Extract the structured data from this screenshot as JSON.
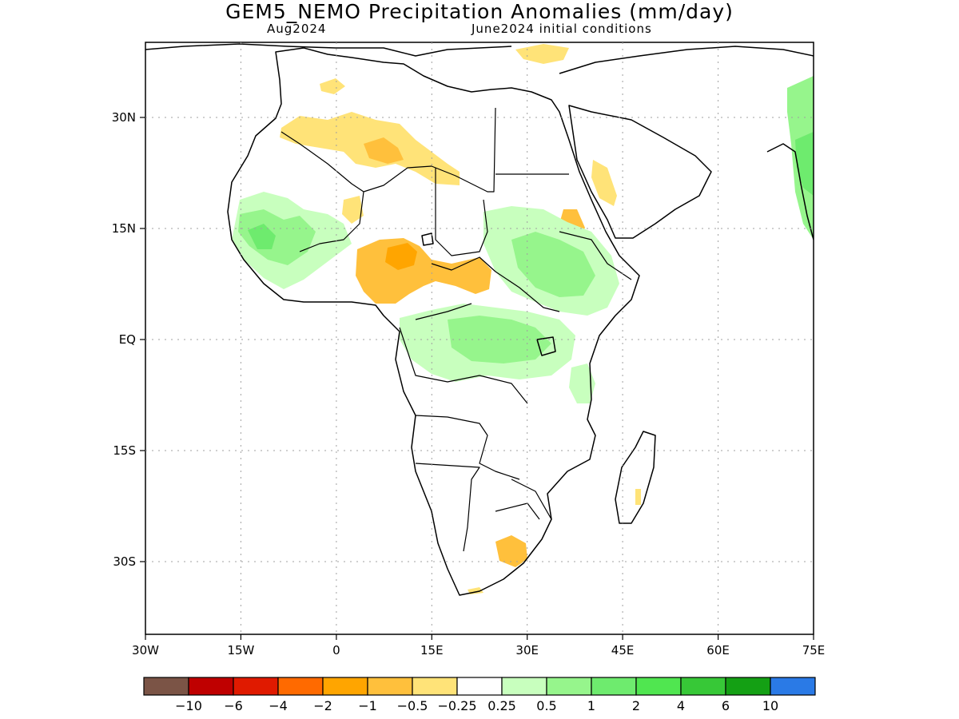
{
  "title": "GEM5_NEMO Precipitation Anomalies (mm/day)",
  "subtitle_left": "Aug2024",
  "subtitle_right": "June2024 initial conditions",
  "axes": {
    "lat_labels": [
      "30N",
      "15N",
      "EQ",
      "15S",
      "30S"
    ],
    "lon_labels": [
      "30W",
      "15W",
      "0",
      "15E",
      "30E",
      "45E",
      "60E",
      "75E"
    ]
  },
  "colorbar": {
    "colors": [
      "#7b5446",
      "#bf0000",
      "#e01a00",
      "#ff6a00",
      "#ffa500",
      "#ffc03c",
      "#ffe378",
      "#ffffff",
      "#c8ffbe",
      "#96f58c",
      "#6eeb6e",
      "#50e650",
      "#37c837",
      "#14a014",
      "#2a7ae6"
    ],
    "labels": [
      "−10",
      "−6",
      "−4",
      "−2",
      "−1",
      "−0.5",
      "−0.25",
      "0.25",
      "0.5",
      "1",
      "2",
      "4",
      "6",
      "10"
    ]
  },
  "legend_colors": {
    "dry_light": "#ffe378",
    "dry_moderate": "#ffc03c",
    "dry_strong": "#ffa500",
    "wet_light": "#c8ffbe",
    "wet_moderate": "#96f58c",
    "wet_strong": "#50e650"
  }
}
